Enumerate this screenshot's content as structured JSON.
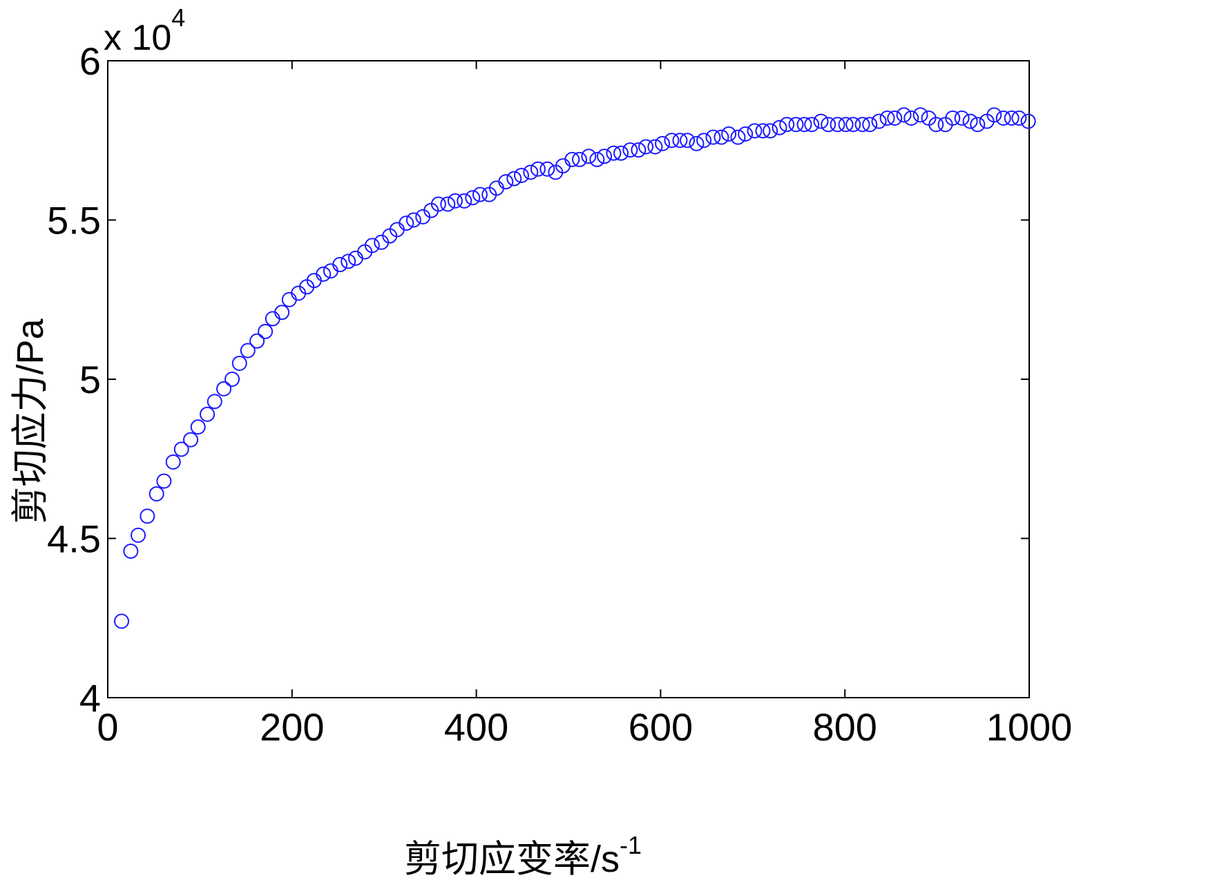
{
  "chart_data": {
    "type": "scatter",
    "xlabel": "剪切应变率/s",
    "xlabel_sup": "-1",
    "ylabel": "剪切应力/Pa",
    "y_multiplier": "x 10",
    "y_multiplier_exp": "4",
    "xlim": [
      0,
      1000
    ],
    "ylim": [
      4,
      6
    ],
    "xticks": [
      0,
      200,
      400,
      600,
      800,
      1000
    ],
    "xtick_labels": [
      "0",
      "200",
      "400",
      "600",
      "800",
      "1000"
    ],
    "yticks": [
      4,
      4.5,
      5,
      5.5,
      6
    ],
    "ytick_labels": [
      "4",
      "4.5",
      "5",
      "5.5",
      "6"
    ],
    "grid": false,
    "legend": "none",
    "marker": "circle-open",
    "marker_color": "#1a1aff",
    "series": [
      {
        "x": [
          15,
          25,
          33,
          43,
          53,
          61,
          71,
          80,
          90,
          98,
          108,
          116,
          126,
          135,
          143,
          152,
          162,
          171,
          179,
          189,
          197,
          207,
          216,
          224,
          234,
          242,
          252,
          261,
          269,
          279,
          287,
          297,
          306,
          314,
          324,
          332,
          342,
          351,
          359,
          369,
          377,
          387,
          396,
          404,
          414,
          422,
          432,
          441,
          449,
          459,
          467,
          477,
          486,
          494,
          504,
          512,
          522,
          531,
          539,
          549,
          557,
          567,
          576,
          584,
          594,
          602,
          612,
          621,
          629,
          639,
          647,
          657,
          666,
          674,
          684,
          692,
          702,
          711,
          719,
          729,
          737,
          747,
          756,
          764,
          774,
          782,
          792,
          801,
          809,
          819,
          827,
          837,
          846,
          854,
          864,
          872,
          882,
          891,
          899,
          909,
          917,
          927,
          936,
          944,
          954,
          962,
          972,
          981,
          989,
          999
        ],
        "y": [
          4.24,
          4.46,
          4.51,
          4.57,
          4.64,
          4.68,
          4.74,
          4.78,
          4.81,
          4.85,
          4.89,
          4.93,
          4.97,
          5.0,
          5.05,
          5.09,
          5.12,
          5.15,
          5.19,
          5.21,
          5.25,
          5.27,
          5.29,
          5.31,
          5.33,
          5.34,
          5.36,
          5.37,
          5.38,
          5.4,
          5.42,
          5.43,
          5.45,
          5.47,
          5.49,
          5.5,
          5.51,
          5.53,
          5.55,
          5.55,
          5.56,
          5.56,
          5.57,
          5.58,
          5.58,
          5.6,
          5.62,
          5.63,
          5.64,
          5.65,
          5.66,
          5.66,
          5.65,
          5.67,
          5.69,
          5.69,
          5.7,
          5.69,
          5.7,
          5.71,
          5.71,
          5.72,
          5.72,
          5.73,
          5.73,
          5.74,
          5.75,
          5.75,
          5.75,
          5.74,
          5.75,
          5.76,
          5.76,
          5.77,
          5.76,
          5.77,
          5.78,
          5.78,
          5.78,
          5.79,
          5.8,
          5.8,
          5.8,
          5.8,
          5.81,
          5.8,
          5.8,
          5.8,
          5.8,
          5.8,
          5.8,
          5.81,
          5.82,
          5.82,
          5.83,
          5.82,
          5.83,
          5.82,
          5.8,
          5.8,
          5.82,
          5.82,
          5.81,
          5.8,
          5.81,
          5.83,
          5.82,
          5.82,
          5.82,
          5.81
        ]
      }
    ]
  }
}
